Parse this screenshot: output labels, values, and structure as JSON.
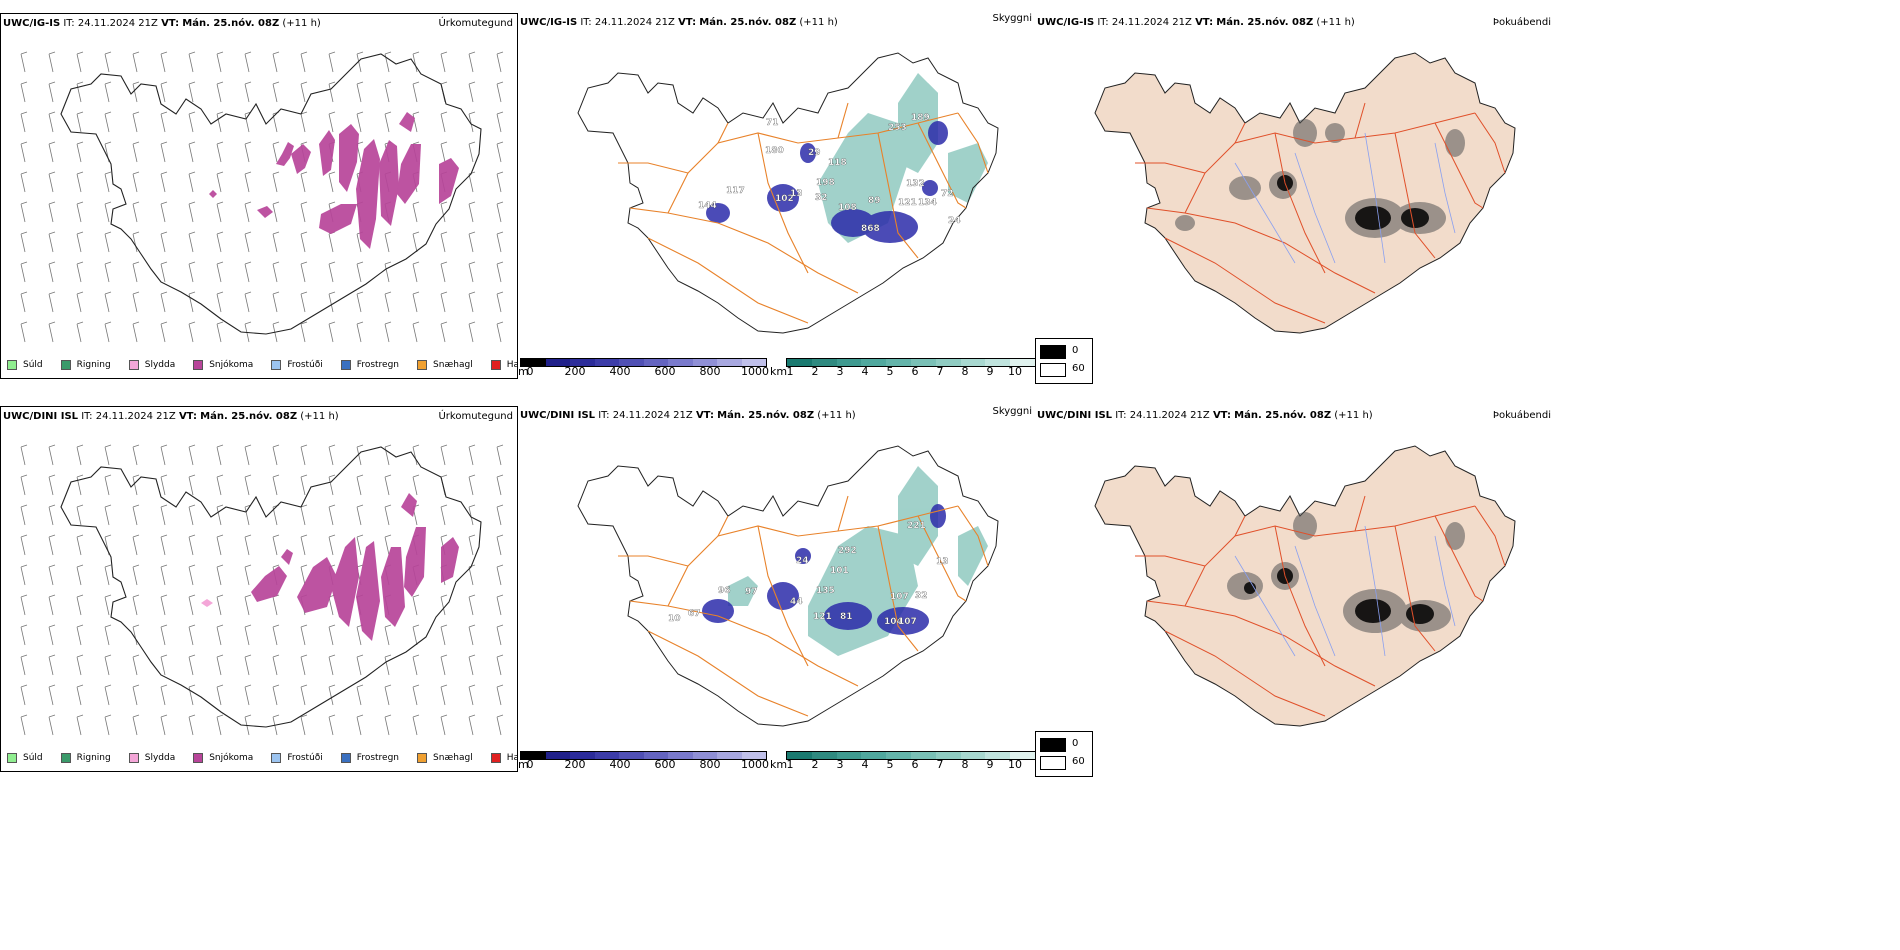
{
  "rows": [
    {
      "model": "UWC/IG-IS",
      "it_label": "IT:",
      "it_value": "24.11.2024 21Z",
      "vt_label": "VT:",
      "vt_value": "Mán. 25.nóv. 08Z",
      "lead": "(+11 h)"
    },
    {
      "model": "UWC/DINI ISL",
      "it_label": "IT:",
      "it_value": "24.11.2024 21Z",
      "vt_label": "VT:",
      "vt_value": "Mán. 25.nóv. 08Z",
      "lead": "(+11 h)"
    }
  ],
  "panel_titles": {
    "precip": "Úrkomutegund",
    "cloud": "Skyggni",
    "fog": "Þokuábendi"
  },
  "precip_legend": [
    {
      "label": "Súld",
      "color": "#90ee90"
    },
    {
      "label": "Rigning",
      "color": "#3a9a6a"
    },
    {
      "label": "Slydda",
      "color": "#f4a6d8"
    },
    {
      "label": "Snjókoma",
      "color": "#b8459a"
    },
    {
      "label": "Frostúði",
      "color": "#9cc4f0"
    },
    {
      "label": "Frostregn",
      "color": "#3a70c0"
    },
    {
      "label": "Snæhagl",
      "color": "#f0a030"
    },
    {
      "label": "Haglél",
      "color": "#e02020"
    }
  ],
  "ceiling_scale": {
    "unit": "m",
    "ticks": [
      "0",
      "200",
      "400",
      "600",
      "800",
      "1000"
    ],
    "colors": [
      "#000000",
      "#20208a",
      "#2c2c9a",
      "#3c3ca8",
      "#5050b4",
      "#6464c0",
      "#7a7acc",
      "#9090d6",
      "#a8a8e0",
      "#c0c0ea"
    ]
  },
  "visibility_scale": {
    "unit": "km",
    "ticks": [
      "1",
      "2",
      "3",
      "4",
      "5",
      "6",
      "7",
      "8",
      "9",
      "10"
    ],
    "colors": [
      "#1a7a70",
      "#2f8a80",
      "#3f9a90",
      "#50a89e",
      "#64b4aa",
      "#7ac0b6",
      "#90ccc2",
      "#a8d8d0",
      "#c0e4de",
      "#e0f2ee"
    ]
  },
  "fog_scale": {
    "high": "0",
    "low": "60"
  },
  "ceiling_labels": [
    [
      "180",
      "71",
      "29",
      "118",
      "198",
      "253",
      "189",
      "24",
      "102",
      "13",
      "32",
      "108",
      "89",
      "121",
      "134",
      "132",
      "72",
      "868",
      "144",
      "117"
    ],
    [
      "24",
      "292",
      "101",
      "135",
      "221",
      "13",
      "96",
      "97",
      "44",
      "121",
      "81",
      "104",
      "107",
      "107",
      "32",
      "67",
      "10"
    ]
  ]
}
